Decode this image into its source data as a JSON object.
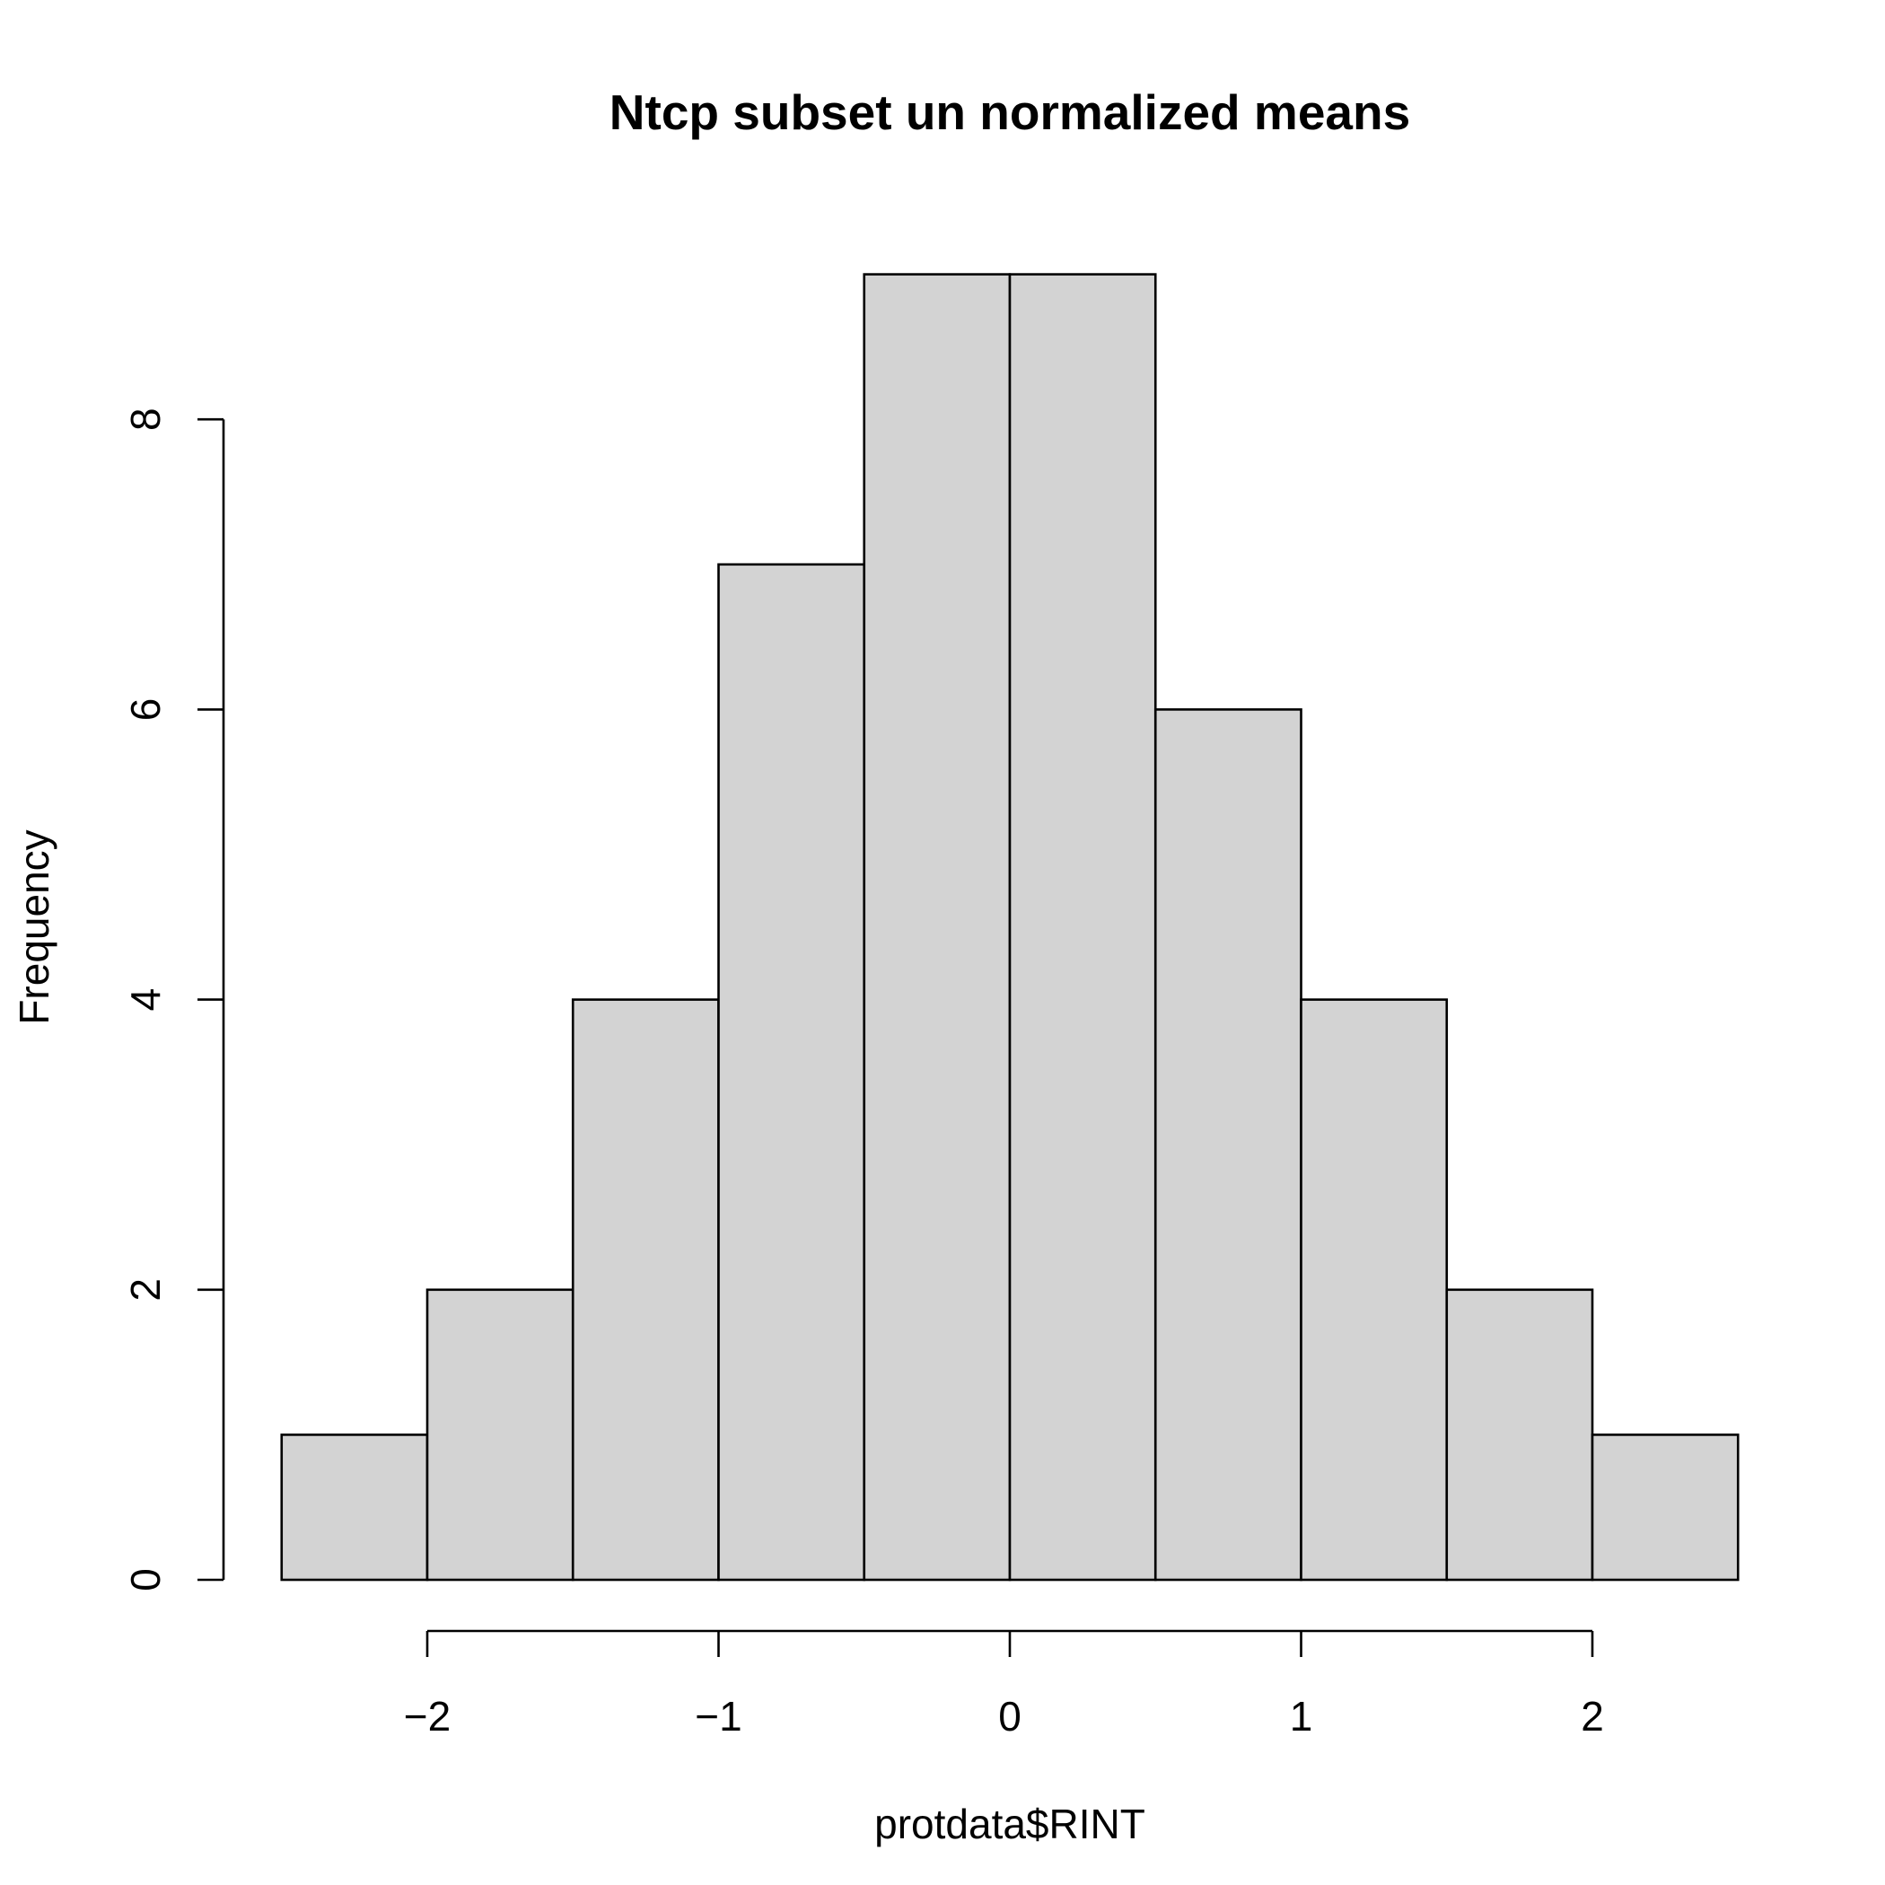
{
  "chart_data": {
    "type": "bar",
    "title": "Ntcp subset un normalized means",
    "xlabel": "protdata$RINT",
    "ylabel": "Frequency",
    "bins": [
      {
        "start": -2.5,
        "end": -2.0,
        "count": 1
      },
      {
        "start": -2.0,
        "end": -1.5,
        "count": 2
      },
      {
        "start": -1.5,
        "end": -1.0,
        "count": 4
      },
      {
        "start": -1.0,
        "end": -0.5,
        "count": 7
      },
      {
        "start": -0.5,
        "end": 0.0,
        "count": 9
      },
      {
        "start": 0.0,
        "end": 0.5,
        "count": 9
      },
      {
        "start": 0.5,
        "end": 1.0,
        "count": 6
      },
      {
        "start": 1.0,
        "end": 1.5,
        "count": 4
      },
      {
        "start": 1.5,
        "end": 2.0,
        "count": 2
      },
      {
        "start": 2.0,
        "end": 2.5,
        "count": 1
      }
    ],
    "x_ticks": [
      -2,
      -1,
      0,
      1,
      2
    ],
    "x_tick_labels": [
      "−2",
      "−1",
      "0",
      "1",
      "2"
    ],
    "y_ticks": [
      0,
      2,
      4,
      6,
      8
    ],
    "y_tick_labels": [
      "0",
      "2",
      "4",
      "6",
      "8"
    ],
    "xlim": [
      -2.5,
      2.5
    ],
    "ylim": [
      0,
      9
    ],
    "bar_fill": "#d3d3d3",
    "bar_stroke": "#000000",
    "grid": false,
    "legend": "none"
  }
}
